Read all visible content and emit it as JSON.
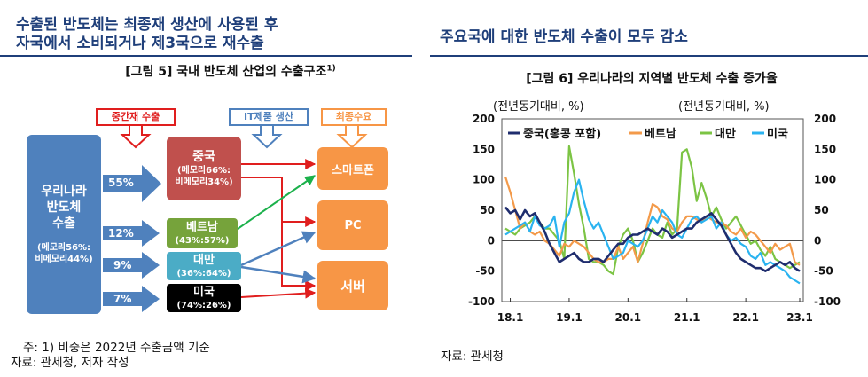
{
  "left": {
    "header": [
      "수출된 반도체는 최종재 생산에 사용된 후",
      "자국에서 소비되거나 제3국으로 재수출"
    ],
    "figure_title": "[그림 5] 국내 반도체 산업의 수출구조",
    "figure_title_sup": "1)",
    "diagram": {
      "source": {
        "title": [
          "우리나라",
          "반도체",
          "수출"
        ],
        "detail": [
          "(메모리56%:",
          "비메모리44%)"
        ]
      },
      "labels": {
        "intermediate": "중간재 수출",
        "it": "IT제품 생산",
        "final": "최종수요"
      },
      "countries": [
        {
          "name": "중국",
          "share": "55%",
          "detail": [
            "(메모리66%:",
            "비메모리34%)"
          ],
          "color": "#c0504d"
        },
        {
          "name": "베트남",
          "share": "12%",
          "detail": [
            "(43%:57%)"
          ],
          "color": "#76a33b"
        },
        {
          "name": "대만",
          "share": "9%",
          "detail": [
            "(36%:64%)"
          ],
          "color": "#4bacc6"
        },
        {
          "name": "미국",
          "share": "7%",
          "detail": [
            "(74%:26%)"
          ],
          "color": "#000000"
        }
      ],
      "products": [
        "스마트폰",
        "PC",
        "서버"
      ]
    },
    "footnote": [
      "주: 1) 비중은 2022년 수출금액 기준",
      "자료: 관세청, 저자 작성"
    ]
  },
  "right": {
    "header": "주요국에 대한 반도체 수출이 모두 감소",
    "figure_title": "[그림 6] 우리나라의 지역별 반도체 수출 증가율",
    "footnote": "자료: 관세청",
    "chart_data": {
      "type": "line",
      "ylabel_left": "(전년동기대비, %)",
      "ylabel_right": "(전년동기대비, %)",
      "ylim": [
        -100,
        200
      ],
      "yticks": [
        -100,
        -50,
        0,
        50,
        100,
        150,
        200
      ],
      "xticks": [
        "18.1",
        "19.1",
        "20.1",
        "21.1",
        "22.1",
        "23.1"
      ],
      "legend_position": "top",
      "series": [
        {
          "name": "중국(홍콩 포함)",
          "color": "#1f2d6e",
          "values": [
            55,
            45,
            50,
            35,
            50,
            40,
            45,
            30,
            15,
            -5,
            -20,
            -35,
            -30,
            -25,
            -20,
            -30,
            -35,
            -35,
            -30,
            -30,
            -35,
            -25,
            -15,
            -5,
            -5,
            5,
            10,
            10,
            15,
            20,
            15,
            10,
            20,
            15,
            5,
            10,
            15,
            20,
            20,
            30,
            35,
            40,
            45,
            35,
            25,
            10,
            -5,
            -20,
            -30,
            -35,
            -40,
            -45,
            -45,
            -50,
            -45,
            -40,
            -35,
            -40,
            -35,
            -45,
            -50
          ]
        },
        {
          "name": "베트남",
          "color": "#f39a4a",
          "values": [
            105,
            80,
            50,
            20,
            30,
            15,
            10,
            15,
            0,
            -5,
            -15,
            -25,
            -5,
            -10,
            0,
            -5,
            -10,
            -20,
            -30,
            -35,
            -35,
            -30,
            -30,
            -10,
            -30,
            -20,
            -10,
            -35,
            -5,
            30,
            60,
            55,
            40,
            35,
            20,
            15,
            30,
            40,
            40,
            35,
            30,
            40,
            35,
            30,
            30,
            25,
            15,
            10,
            20,
            5,
            15,
            10,
            0,
            -10,
            -20,
            -5,
            -15,
            -10,
            -5,
            -35,
            -40
          ]
        },
        {
          "name": "대만",
          "color": "#7cc444",
          "values": [
            20,
            15,
            10,
            20,
            25,
            30,
            40,
            30,
            20,
            20,
            10,
            0,
            -30,
            155,
            110,
            60,
            20,
            -30,
            -35,
            -35,
            -40,
            -50,
            -55,
            -10,
            10,
            20,
            0,
            -35,
            -20,
            0,
            20,
            10,
            5,
            30,
            10,
            20,
            145,
            150,
            120,
            65,
            95,
            70,
            40,
            55,
            35,
            20,
            30,
            40,
            25,
            10,
            -5,
            0,
            -15,
            -25,
            -10,
            -30,
            -35,
            -40,
            -45,
            -40,
            -35
          ]
        },
        {
          "name": "미국",
          "color": "#2ab3f0",
          "values": [
            10,
            15,
            20,
            25,
            30,
            15,
            40,
            25,
            20,
            25,
            40,
            -10,
            30,
            45,
            80,
            100,
            65,
            35,
            20,
            30,
            10,
            -10,
            -30,
            -25,
            -20,
            0,
            -5,
            -10,
            0,
            20,
            40,
            30,
            50,
            40,
            30,
            10,
            5,
            20,
            35,
            40,
            30,
            35,
            40,
            20,
            30,
            10,
            0,
            5,
            -5,
            -10,
            -25,
            -30,
            -20,
            -40,
            -35,
            -40,
            -45,
            -50,
            -60,
            -65,
            -70
          ]
        }
      ]
    }
  }
}
